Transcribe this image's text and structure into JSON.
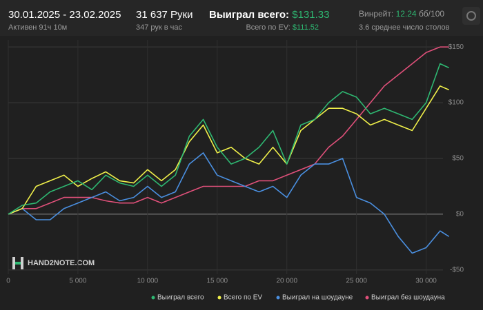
{
  "header": {
    "period": "30.01.2025 - 23.02.2025",
    "active": "Активен 91ч 10м",
    "hands": "31 637 Руки",
    "hands_per_hour": "347 рук в час",
    "won_label": "Выиграл всего:",
    "won_value": "$131.33",
    "ev_label": "Всего по EV:",
    "ev_value": "$111.52",
    "winrate_label": "Винрейт:",
    "winrate_value": "12.24",
    "winrate_unit": "бб/100",
    "tables": "3.6 среднее число столов"
  },
  "logo": "HAND2NOTE.COM",
  "chart_data": {
    "type": "line",
    "legend": "bottom",
    "grid": true,
    "x": [
      0,
      1000,
      2000,
      3000,
      4000,
      5000,
      6000,
      7000,
      8000,
      9000,
      10000,
      11000,
      12000,
      13000,
      14000,
      15000,
      16000,
      17000,
      18000,
      19000,
      20000,
      21000,
      22000,
      23000,
      24000,
      25000,
      26000,
      27000,
      28000,
      29000,
      30000,
      31000,
      31637
    ],
    "xlim": [
      0,
      32200
    ],
    "xticks": [
      0,
      {
        "value": 5000,
        "label": "5 000"
      },
      {
        "value": 10000,
        "label": "10 000"
      },
      {
        "value": 15000,
        "label": "15 000"
      },
      {
        "value": 20000,
        "label": "20 000"
      },
      {
        "value": 25000,
        "label": "25 000"
      },
      {
        "value": 30000,
        "label": "30 000"
      }
    ],
    "ylim": [
      -60,
      160
    ],
    "yticks": [
      {
        "value": -50,
        "label": "-$50"
      },
      {
        "value": 0,
        "label": "$0"
      },
      {
        "value": 50,
        "label": "$50"
      },
      {
        "value": 100,
        "label": "$100"
      },
      {
        "value": 150,
        "label": "$150"
      }
    ],
    "series": [
      {
        "name": "Выиграл всего",
        "color": "#2eb872",
        "values": [
          0,
          8,
          10,
          20,
          25,
          30,
          22,
          35,
          28,
          25,
          35,
          25,
          35,
          70,
          85,
          60,
          45,
          50,
          60,
          75,
          45,
          80,
          85,
          100,
          110,
          105,
          90,
          95,
          90,
          85,
          100,
          135,
          131.33
        ]
      },
      {
        "name": "Всего по EV",
        "color": "#f0f04a",
        "values": [
          0,
          5,
          25,
          30,
          35,
          25,
          32,
          38,
          30,
          28,
          40,
          30,
          40,
          65,
          80,
          55,
          60,
          50,
          45,
          60,
          45,
          75,
          85,
          95,
          95,
          90,
          80,
          85,
          80,
          75,
          95,
          115,
          111.52
        ]
      },
      {
        "name": "Выиграл на шоудауне",
        "color": "#4a8fe0",
        "values": [
          0,
          5,
          -5,
          -5,
          5,
          10,
          15,
          20,
          12,
          15,
          25,
          15,
          20,
          45,
          55,
          35,
          30,
          25,
          20,
          25,
          15,
          35,
          45,
          45,
          50,
          15,
          10,
          0,
          -20,
          -35,
          -30,
          -15,
          -20
        ]
      },
      {
        "name": "Выиграл без шоудауна",
        "color": "#e0507a",
        "values": [
          0,
          5,
          5,
          10,
          15,
          15,
          15,
          12,
          10,
          10,
          15,
          10,
          15,
          20,
          25,
          25,
          25,
          25,
          30,
          30,
          35,
          40,
          45,
          60,
          70,
          85,
          100,
          115,
          125,
          135,
          145,
          150,
          150
        ]
      }
    ]
  }
}
